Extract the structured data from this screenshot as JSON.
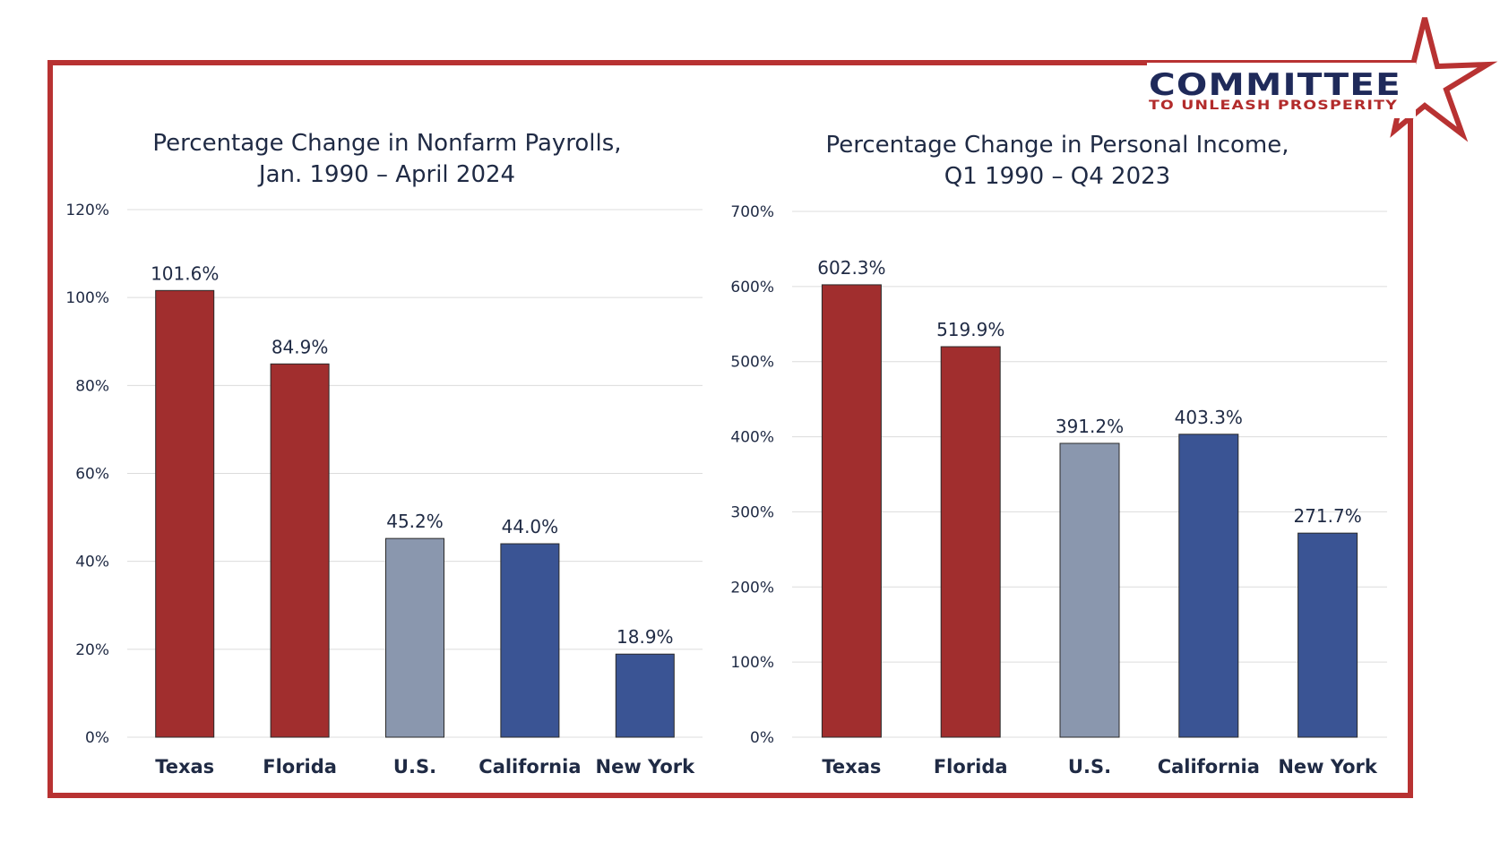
{
  "colors": {
    "frame": "#b83232",
    "red": "#a12e2e",
    "gray_blue": "#8a97ae",
    "blue": "#3a5494",
    "text": "#1f2a44"
  },
  "logo": {
    "main": "COMMITTEE",
    "sub": "TO UNLEASH PROSPERITY",
    "icon": "star-icon"
  },
  "chart_data": [
    {
      "type": "bar",
      "title_lines": [
        "Percentage Change in Nonfarm Payrolls,",
        "Jan. 1990 – April 2024"
      ],
      "categories": [
        "Texas",
        "Florida",
        "U.S.",
        "California",
        "New York"
      ],
      "values": [
        101.6,
        84.9,
        45.2,
        44.0,
        18.9
      ],
      "value_labels": [
        "101.6%",
        "84.9%",
        "45.2%",
        "44.0%",
        "18.9%"
      ],
      "bar_colors": [
        "#a12e2e",
        "#a12e2e",
        "#8a97ae",
        "#3a5494",
        "#3a5494"
      ],
      "ylim": [
        0,
        120
      ],
      "yticks": [
        0,
        20,
        40,
        60,
        80,
        100,
        120
      ],
      "ytick_labels": [
        "0%",
        "20%",
        "40%",
        "60%",
        "80%",
        "100%",
        "120%"
      ],
      "grid": true
    },
    {
      "type": "bar",
      "title_lines": [
        "Percentage Change in Personal Income,",
        "Q1 1990 – Q4 2023"
      ],
      "categories": [
        "Texas",
        "Florida",
        "U.S.",
        "California",
        "New York"
      ],
      "values": [
        602.3,
        519.9,
        391.2,
        403.3,
        271.7
      ],
      "value_labels": [
        "602.3%",
        "519.9%",
        "391.2%",
        "403.3%",
        "271.7%"
      ],
      "bar_colors": [
        "#a12e2e",
        "#a12e2e",
        "#8a97ae",
        "#3a5494",
        "#3a5494"
      ],
      "ylim": [
        0,
        700
      ],
      "yticks": [
        0,
        100,
        200,
        300,
        400,
        500,
        600,
        700
      ],
      "ytick_labels": [
        "0%",
        "100%",
        "200%",
        "300%",
        "400%",
        "500%",
        "600%",
        "700%"
      ],
      "grid": true
    }
  ]
}
